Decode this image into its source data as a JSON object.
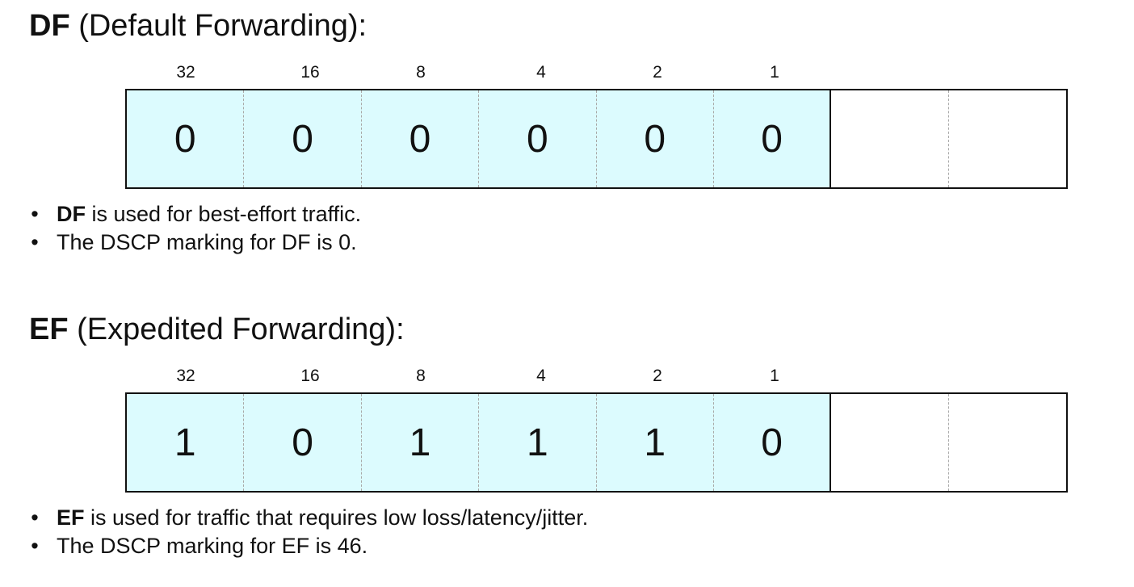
{
  "sections": [
    {
      "abbr": "DF",
      "title_rest": " (Default Forwarding):",
      "weights": [
        "32",
        "16",
        "8",
        "4",
        "2",
        "1"
      ],
      "bits": [
        "0",
        "0",
        "0",
        "0",
        "0",
        "0",
        "",
        ""
      ],
      "bullets": [
        {
          "bold": "DF",
          "text": " is used for best-effort traffic."
        },
        {
          "bold": "",
          "text": "The DSCP marking for DF is 0."
        }
      ]
    },
    {
      "abbr": "EF",
      "title_rest": " (Expedited Forwarding):",
      "weights": [
        "32",
        "16",
        "8",
        "4",
        "2",
        "1"
      ],
      "bits": [
        "1",
        "0",
        "1",
        "1",
        "1",
        "0",
        "",
        ""
      ],
      "bullets": [
        {
          "bold": "EF",
          "text": " is used for traffic that requires low loss/latency/jitter."
        },
        {
          "bold": "",
          "text": "The DSCP marking for EF is 46."
        }
      ]
    }
  ],
  "bullet_glyph": "•",
  "colors": {
    "dscp_fill": "#dcfbfe",
    "border": "#111111",
    "divider": "#a8a8a8"
  }
}
